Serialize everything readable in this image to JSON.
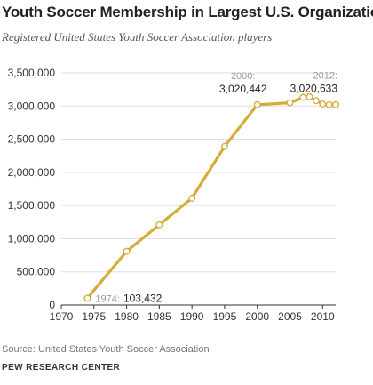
{
  "title": "Youth Soccer Membership in Largest U.S. Organization",
  "subtitle": "Registered United States Youth Soccer Association players",
  "source": "Source: United States Youth Soccer Association",
  "credit": "PEW RESEARCH CENTER",
  "colors": {
    "line": "#d4ac3a",
    "marker_fill": "#ffffff",
    "grid": "#dddddd",
    "axis": "#333333",
    "label_year": "#999999",
    "label_value": "#222222"
  },
  "chart_data": {
    "type": "line",
    "title": "Youth Soccer Membership in Largest U.S. Organization",
    "subtitle": "Registered United States Youth Soccer Association players",
    "xlabel": "",
    "ylabel": "",
    "xlim": [
      1970,
      2012
    ],
    "ylim": [
      0,
      3500000
    ],
    "x_ticks": [
      "1970",
      "1975",
      "1980",
      "1985",
      "1990",
      "1995",
      "2000",
      "2005",
      "2010"
    ],
    "y_ticks": [
      "0",
      "500,000",
      "1,000,000",
      "1,500,000",
      "2,000,000",
      "2,500,000",
      "3,000,000",
      "3,500,000"
    ],
    "grid": "horizontal",
    "series": [
      {
        "x": [
          1974,
          1980,
          1985,
          1990,
          1995,
          2000,
          2005,
          2007,
          2008,
          2009,
          2010,
          2011,
          2012
        ],
        "y": [
          103432,
          810000,
          1210000,
          1610000,
          2390000,
          3020442,
          3050000,
          3130000,
          3140000,
          3080000,
          3030000,
          3020000,
          3020633
        ]
      }
    ],
    "annotations": [
      {
        "year": "1974:",
        "value": "103,432"
      },
      {
        "year": "2000:",
        "value": "3,020,442"
      },
      {
        "year": "2012:",
        "value": "3,020,633"
      }
    ]
  }
}
